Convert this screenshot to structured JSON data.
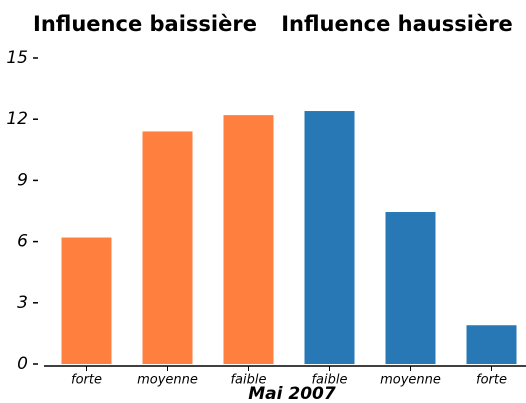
{
  "chart_data": {
    "type": "bar",
    "group_titles": [
      "Influence baissière",
      "Influence haussière"
    ],
    "xlabel": "Mai 2007",
    "categories": [
      "forte",
      "moyenne",
      "faible",
      "faible",
      "moyenne",
      "forte"
    ],
    "values": [
      6.2,
      11.4,
      12.2,
      12.4,
      7.45,
      1.9
    ],
    "colors": [
      "#ff7f3f",
      "#ff7f3f",
      "#ff7f3f",
      "#2778b5",
      "#2778b5",
      "#2778b5"
    ],
    "ylim": [
      0,
      15
    ],
    "yticks": [
      0,
      3,
      6,
      9,
      12,
      15
    ],
    "grid": false
  }
}
